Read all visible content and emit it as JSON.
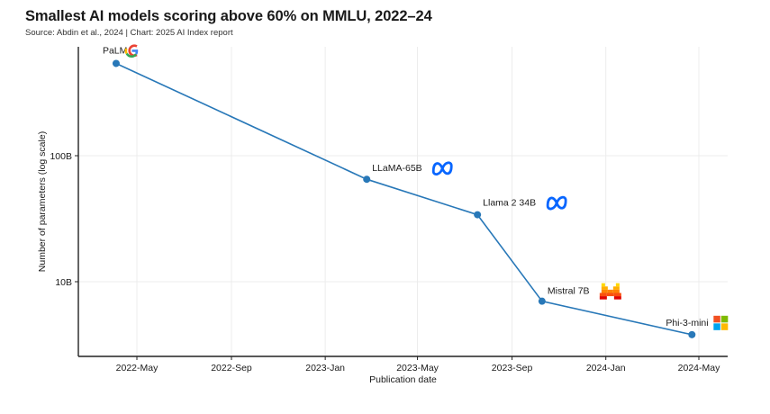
{
  "header": {
    "title": "Smallest AI models scoring above 60% on MMLU, 2022–24",
    "subtitle": "Source: Abdin et al., 2024 | Chart: 2025 AI Index report"
  },
  "colors": {
    "line": "#2878b8",
    "grid": "#ececec",
    "axis": "#222222"
  },
  "chart_data": {
    "type": "line",
    "title": "Smallest AI models scoring above 60% on MMLU, 2022–24",
    "subtitle": "Source: Abdin et al., 2024 | Chart: 2025 AI Index report",
    "xlabel": "Publication date",
    "ylabel": "Number of parameters (log scale)",
    "yscale": "log",
    "grid": true,
    "xticks": [
      {
        "label": "2022-May",
        "date": "2022-05-01"
      },
      {
        "label": "2022-Sep",
        "date": "2022-09-01"
      },
      {
        "label": "2023-Jan",
        "date": "2023-01-01"
      },
      {
        "label": "2023-May",
        "date": "2023-05-01"
      },
      {
        "label": "2023-Sep",
        "date": "2023-09-01"
      },
      {
        "label": "2024-Jan",
        "date": "2024-01-01"
      },
      {
        "label": "2024-May",
        "date": "2024-05-01"
      }
    ],
    "yticks": [
      {
        "label": "10B",
        "value": 10000000000
      },
      {
        "label": "100B",
        "value": 100000000000
      }
    ],
    "points": [
      {
        "label": "PaLM",
        "date": "2022-04-04",
        "value": 540000000000,
        "icon": "google-icon"
      },
      {
        "label": "LLaMA-65B",
        "date": "2023-02-24",
        "value": 65000000000,
        "icon": "meta-icon"
      },
      {
        "label": "Llama 2 34B",
        "date": "2023-07-18",
        "value": 34000000000,
        "icon": "meta-icon"
      },
      {
        "label": "Mistral 7B",
        "date": "2023-10-10",
        "value": 7000000000,
        "icon": "mistral-icon"
      },
      {
        "label": "Phi-3-mini",
        "date": "2024-04-22",
        "value": 3800000000,
        "icon": "microsoft-icon"
      }
    ]
  }
}
